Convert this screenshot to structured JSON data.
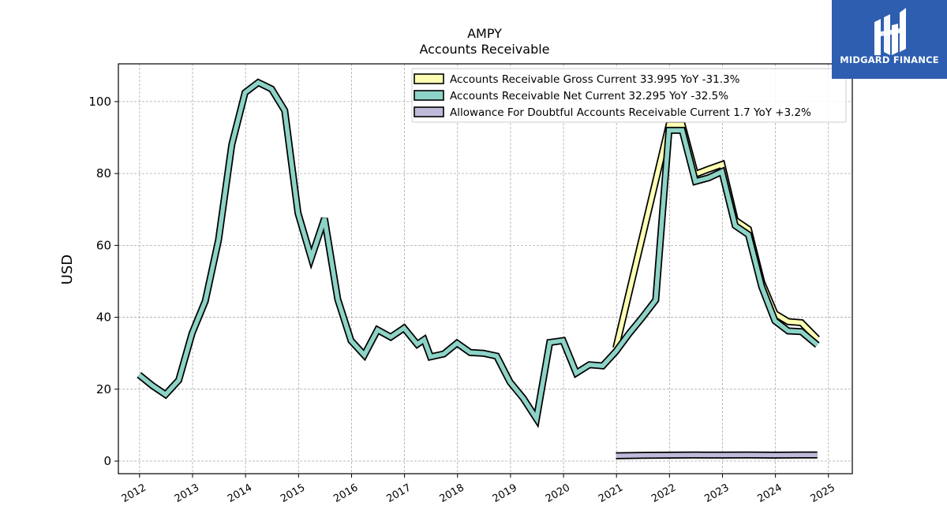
{
  "logo": {
    "text": "MIDGARD FINANCE",
    "bg_color": "#2d5eb0"
  },
  "chart_data": {
    "type": "line",
    "title": "AMPY",
    "subtitle": "Accounts Receivable",
    "xlabel": "",
    "ylabel": "USD",
    "xlim": [
      2011.6,
      2025.45
    ],
    "ylim": [
      -3.5,
      110.5
    ],
    "x_ticks": [
      2012,
      2013,
      2014,
      2015,
      2016,
      2017,
      2018,
      2019,
      2020,
      2021,
      2022,
      2023,
      2024,
      2025
    ],
    "x_tick_labels": [
      "2012",
      "2013",
      "2014",
      "2015",
      "2016",
      "2017",
      "2018",
      "2019",
      "2020",
      "2021",
      "2022",
      "2023",
      "2024",
      "2025"
    ],
    "y_ticks": [
      0,
      20,
      40,
      60,
      80,
      100
    ],
    "y_tick_labels": [
      "0",
      "20",
      "40",
      "60",
      "80",
      "100"
    ],
    "grid": true,
    "legend_position": "top-right",
    "series": [
      {
        "name": "Accounts Receivable Gross Current",
        "legend_label": "Accounts Receivable Gross Current  33.995 YoY -31.3%",
        "color": "#ffffb3",
        "points": [
          [
            2020.99,
            31.5
          ],
          [
            2021.99,
            93.5
          ],
          [
            2022.24,
            93.5
          ],
          [
            2022.49,
            79.8
          ],
          [
            2022.74,
            81.2
          ],
          [
            2022.99,
            82.5
          ],
          [
            2023.24,
            67.0
          ],
          [
            2023.49,
            64.5
          ],
          [
            2023.74,
            49.8
          ],
          [
            2023.99,
            41.0
          ],
          [
            2024.24,
            38.8
          ],
          [
            2024.49,
            38.5
          ],
          [
            2024.79,
            34.0
          ]
        ]
      },
      {
        "name": "Accounts Receivable Net Current",
        "legend_label": "Accounts Receivable Net Current  32.295 YoY -32.5%",
        "color": "#8dd3c7",
        "points": [
          [
            2011.99,
            24.0
          ],
          [
            2012.24,
            21.0
          ],
          [
            2012.49,
            18.5
          ],
          [
            2012.74,
            22.5
          ],
          [
            2012.99,
            35.5
          ],
          [
            2013.24,
            44.5
          ],
          [
            2013.49,
            61.5
          ],
          [
            2013.74,
            88.0
          ],
          [
            2013.99,
            102.5
          ],
          [
            2014.24,
            105.3
          ],
          [
            2014.49,
            103.5
          ],
          [
            2014.74,
            97.5
          ],
          [
            2014.99,
            69.0
          ],
          [
            2015.24,
            56.5
          ],
          [
            2015.49,
            67.5
          ],
          [
            2015.74,
            45.0
          ],
          [
            2015.99,
            33.5
          ],
          [
            2016.24,
            29.5
          ],
          [
            2016.49,
            36.5
          ],
          [
            2016.74,
            34.5
          ],
          [
            2016.99,
            37.0
          ],
          [
            2017.24,
            32.5
          ],
          [
            2017.37,
            33.8
          ],
          [
            2017.49,
            29.0
          ],
          [
            2017.74,
            29.8
          ],
          [
            2017.99,
            32.8
          ],
          [
            2018.24,
            30.2
          ],
          [
            2018.49,
            30.0
          ],
          [
            2018.74,
            29.2
          ],
          [
            2018.99,
            22.0
          ],
          [
            2019.24,
            17.5
          ],
          [
            2019.49,
            11.8
          ],
          [
            2019.74,
            33.0
          ],
          [
            2019.99,
            33.5
          ],
          [
            2020.24,
            24.5
          ],
          [
            2020.49,
            26.8
          ],
          [
            2020.74,
            26.5
          ],
          [
            2020.99,
            30.5
          ],
          [
            2021.24,
            35.5
          ],
          [
            2021.49,
            40.0
          ],
          [
            2021.74,
            44.8
          ],
          [
            2021.99,
            92.0
          ],
          [
            2022.24,
            92.0
          ],
          [
            2022.49,
            77.8
          ],
          [
            2022.74,
            78.8
          ],
          [
            2022.99,
            80.5
          ],
          [
            2023.24,
            65.5
          ],
          [
            2023.49,
            63.0
          ],
          [
            2023.74,
            48.5
          ],
          [
            2023.99,
            39.0
          ],
          [
            2024.24,
            36.2
          ],
          [
            2024.49,
            36.0
          ],
          [
            2024.79,
            32.3
          ]
        ]
      },
      {
        "name": "Allowance For Doubtful Accounts Receivable Current",
        "legend_label": "Allowance For Doubtful Accounts Receivable Current  1.7 YoY +3.2%",
        "color": "#bebada",
        "points": [
          [
            2020.99,
            1.5
          ],
          [
            2021.49,
            1.6
          ],
          [
            2021.99,
            1.65
          ],
          [
            2022.49,
            1.7
          ],
          [
            2022.99,
            1.68
          ],
          [
            2023.49,
            1.7
          ],
          [
            2023.99,
            1.65
          ],
          [
            2024.49,
            1.7
          ],
          [
            2024.79,
            1.7
          ]
        ]
      }
    ]
  }
}
